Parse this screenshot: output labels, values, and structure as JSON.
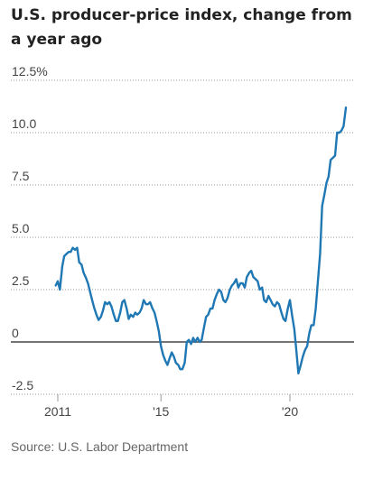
{
  "chart_data": {
    "type": "line",
    "title": "U.S. producer-price index, change from a year ago",
    "source": "Source: U.S. Labor Department",
    "xlabel": "",
    "ylabel": "",
    "y_ticks": [
      "12.5%",
      "10.0",
      "7.5",
      "5.0",
      "2.5",
      "0",
      "-2.5"
    ],
    "y_tick_values": [
      12.5,
      10.0,
      7.5,
      5.0,
      2.5,
      0,
      -2.5
    ],
    "x_ticks": [
      "2011",
      "'15",
      "'20"
    ],
    "x_tick_values": [
      2011,
      2015,
      2020
    ],
    "ylim": [
      -2.5,
      12.5
    ],
    "xlim": [
      2010.5,
      2022.4
    ],
    "grid": "horizontal",
    "series_color": "#1f78b4",
    "series": [
      {
        "points": [
          [
            2010.92,
            2.7
          ],
          [
            2011.0,
            2.9
          ],
          [
            2011.08,
            2.5
          ],
          [
            2011.17,
            3.6
          ],
          [
            2011.25,
            4.1
          ],
          [
            2011.33,
            4.2
          ],
          [
            2011.42,
            4.3
          ],
          [
            2011.5,
            4.3
          ],
          [
            2011.58,
            4.5
          ],
          [
            2011.67,
            4.4
          ],
          [
            2011.75,
            4.5
          ],
          [
            2011.83,
            3.8
          ],
          [
            2011.92,
            3.7
          ],
          [
            2012.0,
            3.3
          ],
          [
            2012.08,
            3.1
          ],
          [
            2012.17,
            2.8
          ],
          [
            2012.25,
            2.4
          ],
          [
            2012.33,
            2.0
          ],
          [
            2012.42,
            1.6
          ],
          [
            2012.5,
            1.3
          ],
          [
            2012.58,
            1.05
          ],
          [
            2012.67,
            1.2
          ],
          [
            2012.75,
            1.5
          ],
          [
            2012.83,
            1.9
          ],
          [
            2012.92,
            1.8
          ],
          [
            2013.0,
            1.9
          ],
          [
            2013.08,
            1.7
          ],
          [
            2013.17,
            1.3
          ],
          [
            2013.25,
            1.0
          ],
          [
            2013.33,
            1.0
          ],
          [
            2013.42,
            1.4
          ],
          [
            2013.5,
            1.9
          ],
          [
            2013.58,
            2.0
          ],
          [
            2013.67,
            1.6
          ],
          [
            2013.75,
            1.1
          ],
          [
            2013.83,
            1.3
          ],
          [
            2013.92,
            1.2
          ],
          [
            2014.0,
            1.4
          ],
          [
            2014.08,
            1.3
          ],
          [
            2014.17,
            1.4
          ],
          [
            2014.25,
            1.6
          ],
          [
            2014.33,
            2.0
          ],
          [
            2014.42,
            1.8
          ],
          [
            2014.5,
            1.8
          ],
          [
            2014.58,
            1.9
          ],
          [
            2014.67,
            1.6
          ],
          [
            2014.75,
            1.4
          ],
          [
            2014.83,
            1.0
          ],
          [
            2014.92,
            0.5
          ],
          [
            2015.0,
            -0.2
          ],
          [
            2015.08,
            -0.6
          ],
          [
            2015.17,
            -0.9
          ],
          [
            2015.25,
            -1.1
          ],
          [
            2015.33,
            -0.8
          ],
          [
            2015.42,
            -0.5
          ],
          [
            2015.5,
            -0.7
          ],
          [
            2015.58,
            -1.0
          ],
          [
            2015.67,
            -1.1
          ],
          [
            2015.75,
            -1.3
          ],
          [
            2015.83,
            -1.3
          ],
          [
            2015.92,
            -1.0
          ],
          [
            2016.0,
            0.0
          ],
          [
            2016.08,
            0.1
          ],
          [
            2016.17,
            -0.1
          ],
          [
            2016.25,
            0.2
          ],
          [
            2016.33,
            0.0
          ],
          [
            2016.42,
            0.2
          ],
          [
            2016.5,
            0.0
          ],
          [
            2016.58,
            0.1
          ],
          [
            2016.67,
            0.7
          ],
          [
            2016.75,
            1.2
          ],
          [
            2016.83,
            1.3
          ],
          [
            2016.92,
            1.6
          ],
          [
            2017.0,
            1.6
          ],
          [
            2017.08,
            2.0
          ],
          [
            2017.17,
            2.3
          ],
          [
            2017.25,
            2.5
          ],
          [
            2017.33,
            2.4
          ],
          [
            2017.42,
            2.0
          ],
          [
            2017.5,
            1.9
          ],
          [
            2017.58,
            2.1
          ],
          [
            2017.67,
            2.5
          ],
          [
            2017.75,
            2.7
          ],
          [
            2017.83,
            2.8
          ],
          [
            2017.92,
            3.0
          ],
          [
            2018.0,
            2.6
          ],
          [
            2018.08,
            2.8
          ],
          [
            2018.17,
            2.8
          ],
          [
            2018.25,
            2.6
          ],
          [
            2018.33,
            3.1
          ],
          [
            2018.42,
            3.3
          ],
          [
            2018.5,
            3.4
          ],
          [
            2018.58,
            3.1
          ],
          [
            2018.67,
            3.0
          ],
          [
            2018.75,
            2.9
          ],
          [
            2018.83,
            2.5
          ],
          [
            2018.92,
            2.6
          ],
          [
            2019.0,
            2.0
          ],
          [
            2019.08,
            1.9
          ],
          [
            2019.17,
            2.2
          ],
          [
            2019.25,
            2.0
          ],
          [
            2019.33,
            1.8
          ],
          [
            2019.42,
            1.7
          ],
          [
            2019.5,
            1.9
          ],
          [
            2019.58,
            1.8
          ],
          [
            2019.67,
            1.4
          ],
          [
            2019.75,
            1.1
          ],
          [
            2019.83,
            1.0
          ],
          [
            2019.92,
            1.6
          ],
          [
            2020.0,
            2.0
          ],
          [
            2020.08,
            1.3
          ],
          [
            2020.17,
            0.6
          ],
          [
            2020.25,
            -0.4
          ],
          [
            2020.33,
            -1.5
          ],
          [
            2020.42,
            -1.1
          ],
          [
            2020.5,
            -0.7
          ],
          [
            2020.58,
            -0.4
          ],
          [
            2020.67,
            -0.2
          ],
          [
            2020.75,
            0.4
          ],
          [
            2020.83,
            0.8
          ],
          [
            2020.92,
            0.8
          ],
          [
            2021.0,
            1.6
          ],
          [
            2021.08,
            2.8
          ],
          [
            2021.17,
            4.2
          ],
          [
            2021.25,
            6.5
          ],
          [
            2021.33,
            7.0
          ],
          [
            2021.42,
            7.6
          ],
          [
            2021.5,
            7.9
          ],
          [
            2021.58,
            8.7
          ],
          [
            2021.67,
            8.8
          ],
          [
            2021.75,
            8.9
          ],
          [
            2021.83,
            10.0
          ],
          [
            2021.92,
            10.0
          ],
          [
            2022.0,
            10.1
          ],
          [
            2022.08,
            10.3
          ],
          [
            2022.17,
            11.2
          ]
        ]
      }
    ]
  }
}
